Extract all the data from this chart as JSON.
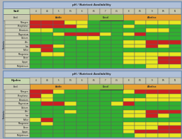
{
  "title1": "pH / Nutrient Availability",
  "title2": "pH / Nutrient Availability",
  "label1": "Soil",
  "label2": "Hydro",
  "nutrients": [
    "Nitrogen",
    "Phosphorus",
    "Potassium",
    "Magnesium",
    "Calcium",
    "Zinc",
    "Iron",
    "Sulfur",
    "Manganese",
    "Boron",
    "Copper",
    "Molybdenum"
  ],
  "ph_ticks": [
    "4",
    "4.5",
    "5",
    "5.5",
    "6",
    "6.5",
    "7",
    "7.5",
    "8",
    "8.5",
    "9",
    "9.5",
    "10"
  ],
  "acidic_label": "Acidic",
  "good_label": "Good",
  "alkaline_label": "Alkaline",
  "bg_color": "#b8b8b8",
  "title_bg": "#b0c0d8",
  "label_bg": "#c8d8b0",
  "ph_header_bg": "#c8c8b0",
  "avail_bg": "#c8c8b0",
  "nutrient_bg": "#d0d0b8",
  "side_label_bg": "#b8b8a8",
  "outer_border": "#7090b8",
  "acidic_color": "#e8a030",
  "good_color": "#90c040",
  "alkaline_color": "#e8a030",
  "R": "#cc2020",
  "Y": "#e8e820",
  "G": "#30b030",
  "dark_border": "#606060",
  "ph7_border": "#404040",
  "soil_grid": [
    [
      "R",
      "R",
      "R",
      "Y",
      "Y",
      "G",
      "G",
      "G",
      "G",
      "Y",
      "Y",
      "Y",
      "Y"
    ],
    [
      "R",
      "R",
      "R",
      "R",
      "Y",
      "G",
      "G",
      "G",
      "Y",
      "G",
      "G",
      "G",
      "G"
    ],
    [
      "Y",
      "Y",
      "G",
      "G",
      "G",
      "G",
      "G",
      "G",
      "G",
      "G",
      "Y",
      "Y",
      "G"
    ],
    [
      "G",
      "G",
      "Y",
      "R",
      "R",
      "R",
      "Y",
      "G",
      "Y",
      "R",
      "G",
      "G",
      "G"
    ],
    [
      "G",
      "G",
      "G",
      "G",
      "Y",
      "Y",
      "G",
      "G",
      "G",
      "G",
      "G",
      "G",
      "G"
    ],
    [
      "G",
      "G",
      "G",
      "G",
      "G",
      "G",
      "G",
      "G",
      "Y",
      "Y",
      "R",
      "R",
      "R"
    ],
    [
      "R",
      "R",
      "Y",
      "G",
      "G",
      "G",
      "G",
      "G",
      "Y",
      "Y",
      "R",
      "Y",
      "G"
    ],
    [
      "Y",
      "R",
      "G",
      "G",
      "G",
      "G",
      "G",
      "G",
      "G",
      "G",
      "G",
      "G",
      "G"
    ],
    [
      "G",
      "Y",
      "Y",
      "G",
      "G",
      "G",
      "G",
      "G",
      "Y",
      "Y",
      "Y",
      "Y",
      "Y"
    ],
    [
      "G",
      "G",
      "G",
      "G",
      "G",
      "G",
      "G",
      "G",
      "Y",
      "Y",
      "Y",
      "R",
      "R"
    ],
    [
      "G",
      "G",
      "G",
      "G",
      "G",
      "G",
      "G",
      "G",
      "Y",
      "Y",
      "Y",
      "R",
      "R"
    ],
    [
      "G",
      "G",
      "G",
      "G",
      "G",
      "G",
      "G",
      "G",
      "G",
      "G",
      "Y",
      "Y",
      "Y"
    ]
  ],
  "hydro_grid": [
    [
      "R",
      "R",
      "Y",
      "G",
      "G",
      "G",
      "G",
      "G",
      "Y",
      "R",
      "R",
      "R",
      "R"
    ],
    [
      "R",
      "Y",
      "G",
      "G",
      "G",
      "G",
      "G",
      "G",
      "G",
      "G",
      "Y",
      "Y",
      "Y"
    ],
    [
      "Y",
      "Y",
      "G",
      "G",
      "G",
      "G",
      "G",
      "G",
      "Y",
      "Y",
      "Y",
      "Y",
      "Y"
    ],
    [
      "G",
      "R",
      "R",
      "Y",
      "G",
      "G",
      "G",
      "Y",
      "R",
      "G",
      "G",
      "G",
      "G"
    ],
    [
      "G",
      "G",
      "G",
      "G",
      "G",
      "G",
      "G",
      "G",
      "G",
      "G",
      "G",
      "G",
      "G"
    ],
    [
      "G",
      "G",
      "G",
      "Y",
      "G",
      "G",
      "G",
      "G",
      "Y",
      "Y",
      "R",
      "R",
      "R"
    ],
    [
      "G",
      "G",
      "G",
      "G",
      "G",
      "G",
      "G",
      "G",
      "Y",
      "Y",
      "R",
      "Y",
      "G"
    ],
    [
      "Y",
      "R",
      "G",
      "G",
      "G",
      "G",
      "G",
      "G",
      "G",
      "G",
      "G",
      "G",
      "G"
    ],
    [
      "G",
      "Y",
      "G",
      "G",
      "G",
      "G",
      "G",
      "G",
      "Y",
      "Y",
      "Y",
      "Y",
      "Y"
    ],
    [
      "G",
      "G",
      "G",
      "G",
      "G",
      "G",
      "G",
      "G",
      "Y",
      "Y",
      "Y",
      "R",
      "R"
    ],
    [
      "G",
      "G",
      "G",
      "G",
      "G",
      "G",
      "G",
      "G",
      "Y",
      "R",
      "R",
      "R",
      "R"
    ],
    [
      "G",
      "G",
      "G",
      "G",
      "G",
      "G",
      "G",
      "G",
      "G",
      "Y",
      "Y",
      "Y",
      "Y"
    ]
  ],
  "acidic_cols": [
    0,
    1,
    2,
    3,
    4
  ],
  "good_cols": [
    5,
    6,
    7
  ],
  "alkaline_cols": [
    8,
    9,
    10,
    11,
    12
  ]
}
